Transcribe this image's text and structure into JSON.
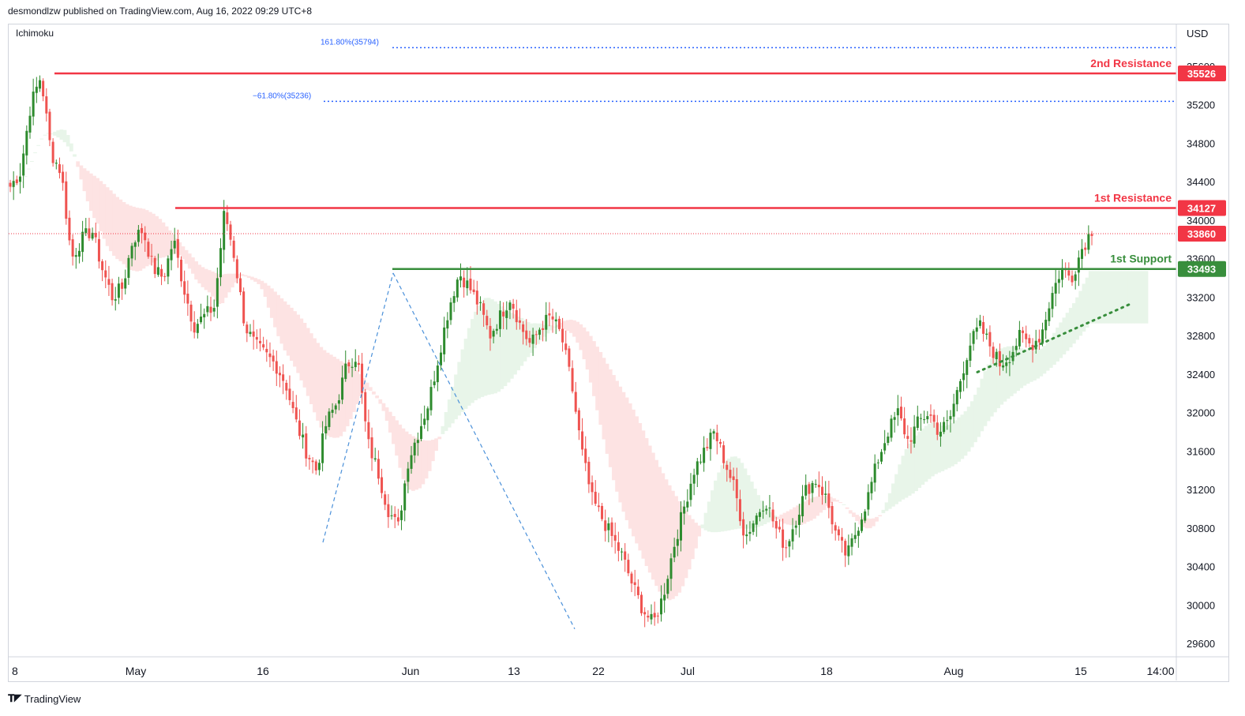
{
  "header": {
    "publisher_line": "desmondlzw published on TradingView.com, Aug 16, 2022 09:29 UTC+8"
  },
  "indicator": {
    "name": "Ichimoku"
  },
  "axis": {
    "currency": "USD"
  },
  "footer": {
    "brand": "TradingView",
    "logo_icon": "tradingview-logo-icon"
  },
  "colors": {
    "up": "#26a69a",
    "up_body": "#2e8b2e",
    "down": "#ef5350",
    "resistance": "#f23645",
    "support": "#388e3c",
    "cloud_bull": "#e8f5e9",
    "cloud_bear": "#fde3e3",
    "fib": "#2962ff",
    "current": "#f23645"
  },
  "chart_data": {
    "type": "candlestick",
    "symbol_quote": "USD",
    "y_range": [
      29450,
      35900
    ],
    "y_ticks": [
      29600,
      30000,
      30400,
      30800,
      31200,
      31600,
      32000,
      32400,
      32800,
      33200,
      33600,
      34000,
      34400,
      34800,
      35200,
      35600
    ],
    "x_ticks": [
      "8",
      "May",
      "16",
      "Jun",
      "13",
      "22",
      "Jul",
      "18",
      "Aug",
      "15",
      "14:00"
    ],
    "levels": [
      {
        "name": "2nd Resistance",
        "value": 35526,
        "kind": "resistance"
      },
      {
        "name": "1st Resistance",
        "value": 34127,
        "kind": "resistance"
      },
      {
        "name": "1st Support",
        "value": 33493,
        "kind": "support"
      }
    ],
    "current_price": 33860,
    "fibonacci": [
      {
        "label": "161.80%(35794)",
        "value": 35794
      },
      {
        "label": "−61.80%(35236)",
        "value": 35236
      }
    ],
    "close_path": [
      34350,
      34500,
      35200,
      35500,
      34700,
      34500,
      33600,
      33800,
      33900,
      33500,
      33200,
      33300,
      33800,
      33900,
      33500,
      33400,
      33800,
      33300,
      32900,
      33000,
      33100,
      34100,
      33600,
      32900,
      32700,
      32600,
      32500,
      32300,
      31900,
      31600,
      31400,
      31900,
      32100,
      32500,
      32600,
      31700,
      31400,
      31000,
      30800,
      31500,
      31800,
      32100,
      32600,
      33100,
      33450,
      33300,
      33100,
      32800,
      33000,
      33200,
      32900,
      32700,
      32900,
      33000,
      32800,
      32300,
      31600,
      31100,
      30900,
      30700,
      30500,
      30200,
      29950,
      29800,
      30100,
      30600,
      31000,
      31400,
      31600,
      31800,
      31500,
      31200,
      30700,
      30900,
      31100,
      30800,
      30600,
      30900,
      31200,
      31300,
      31100,
      30700,
      30500,
      30800,
      31100,
      31500,
      31800,
      32000,
      31700,
      31900,
      32000,
      31800,
      31900,
      32300,
      32700,
      32900,
      32700,
      32500,
      32600,
      32800,
      32700,
      32800,
      33200,
      33500,
      33400,
      33700,
      33900
    ],
    "zigzag": [
      {
        "from": 30650,
        "to": 33450
      },
      {
        "from": 33450,
        "to": 29750
      }
    ],
    "trendline": {
      "from": 32420,
      "to": 33130,
      "style": "dotted",
      "color": "support"
    }
  }
}
